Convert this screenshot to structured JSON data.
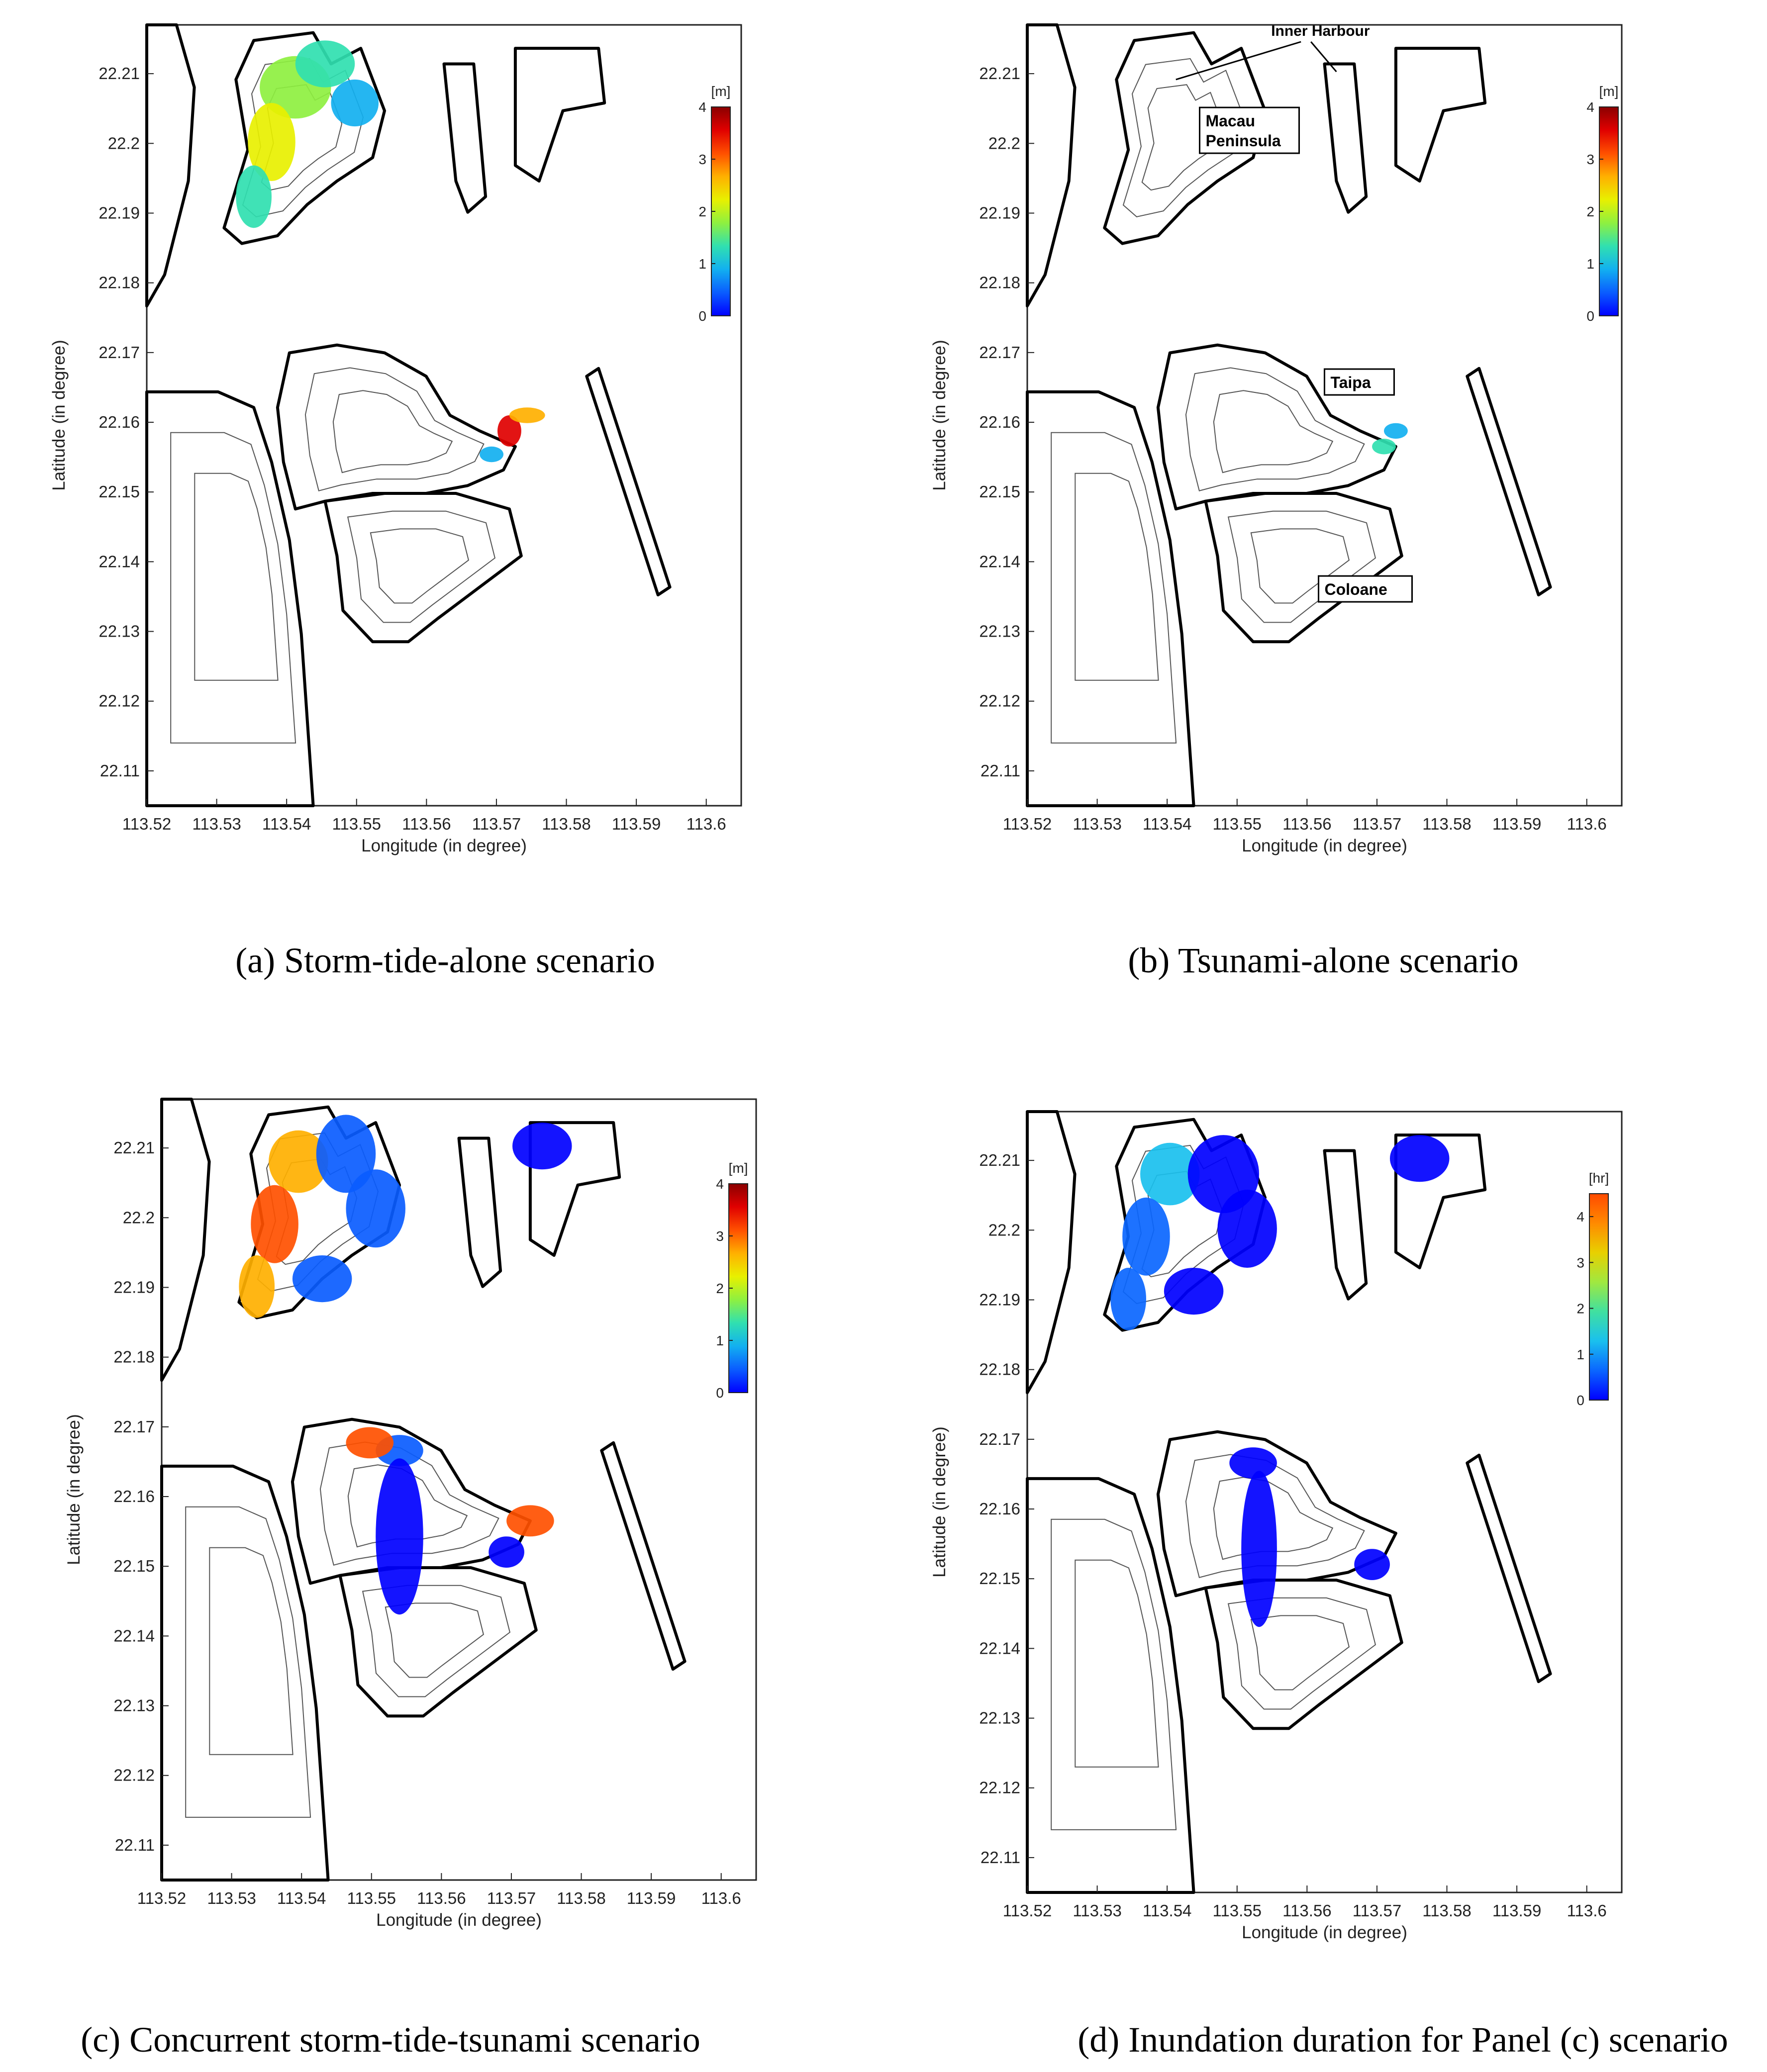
{
  "chart_data": [
    {
      "type": "heatmap",
      "panel": "a",
      "caption": "(a) Storm-tide-alone scenario",
      "xlabel": "Longitude (in degree)",
      "ylabel": "Latitude (in degree)",
      "xlim": [
        113.52,
        113.605
      ],
      "ylim": [
        22.105,
        22.217
      ],
      "xticks": [
        "113.52",
        "113.53",
        "113.54",
        "113.55",
        "113.56",
        "113.57",
        "113.58",
        "113.59",
        "113.6"
      ],
      "yticks": [
        "22.11",
        "22.12",
        "22.13",
        "22.14",
        "22.15",
        "22.16",
        "22.17",
        "22.18",
        "22.19",
        "22.2",
        "22.21"
      ],
      "colorbar": {
        "unit": "[m]",
        "ticks": [
          "0",
          "1",
          "2",
          "3",
          "4"
        ],
        "min": 0,
        "max": 4
      },
      "labels": []
    },
    {
      "type": "heatmap",
      "panel": "b",
      "caption": "(b) Tsunami-alone scenario",
      "xlabel": "Longitude (in degree)",
      "ylabel": "Latitude (in degree)",
      "xlim": [
        113.52,
        113.605
      ],
      "ylim": [
        22.105,
        22.217
      ],
      "xticks": [
        "113.52",
        "113.53",
        "113.54",
        "113.55",
        "113.56",
        "113.57",
        "113.58",
        "113.59",
        "113.6"
      ],
      "yticks": [
        "22.11",
        "22.12",
        "22.13",
        "22.14",
        "22.15",
        "22.16",
        "22.17",
        "22.18",
        "22.19",
        "22.2",
        "22.21"
      ],
      "colorbar": {
        "unit": "[m]",
        "ticks": [
          "0",
          "1",
          "2",
          "3",
          "4"
        ],
        "min": 0,
        "max": 4
      },
      "labels": [
        "Inner Harbour",
        "Macau",
        "Peninsula",
        "Taipa",
        "Coloane"
      ]
    },
    {
      "type": "heatmap",
      "panel": "c",
      "caption": "(c) Concurrent storm-tide-tsunami scenario",
      "xlabel": "Longitude (in degree)",
      "ylabel": "Latitude (in degree)",
      "xlim": [
        113.52,
        113.605
      ],
      "ylim": [
        22.105,
        22.217
      ],
      "xticks": [
        "113.52",
        "113.53",
        "113.54",
        "113.55",
        "113.56",
        "113.57",
        "113.58",
        "113.59",
        "113.6"
      ],
      "yticks": [
        "22.11",
        "22.12",
        "22.13",
        "22.14",
        "22.15",
        "22.16",
        "22.17",
        "22.18",
        "22.19",
        "22.2",
        "22.21"
      ],
      "colorbar": {
        "unit": "[m]",
        "ticks": [
          "0",
          "1",
          "2",
          "3",
          "4"
        ],
        "min": 0,
        "max": 4
      },
      "labels": []
    },
    {
      "type": "heatmap",
      "panel": "d",
      "caption": "(d) Inundation duration for Panel (c) scenario",
      "xlabel": "Longitude (in degree)",
      "ylabel": "Latitude (in degree)",
      "xlim": [
        113.52,
        113.605
      ],
      "ylim": [
        22.105,
        22.217
      ],
      "xticks": [
        "113.52",
        "113.53",
        "113.54",
        "113.55",
        "113.56",
        "113.57",
        "113.58",
        "113.59",
        "113.6"
      ],
      "yticks": [
        "22.11",
        "22.12",
        "22.13",
        "22.14",
        "22.15",
        "22.16",
        "22.17",
        "22.18",
        "22.19",
        "22.2",
        "22.21"
      ],
      "colorbar": {
        "unit": "[hr]",
        "ticks": [
          "0",
          "1",
          "2",
          "3",
          "4"
        ],
        "min": 0,
        "max": 4.5
      },
      "labels": []
    }
  ],
  "colors": {
    "jet": [
      "#0000ff",
      "#0a5cff",
      "#12b0f0",
      "#30e0b0",
      "#8ef040",
      "#e8f000",
      "#ffb000",
      "#ff5000",
      "#e00000",
      "#8b0000"
    ],
    "duration": [
      "#0000ff",
      "#0a66ff",
      "#1ac0ee",
      "#40e0a0",
      "#a0e840",
      "#e8d000",
      "#ff8a00",
      "#ff4a00"
    ],
    "outline": "#000000",
    "contour": "#555555"
  }
}
